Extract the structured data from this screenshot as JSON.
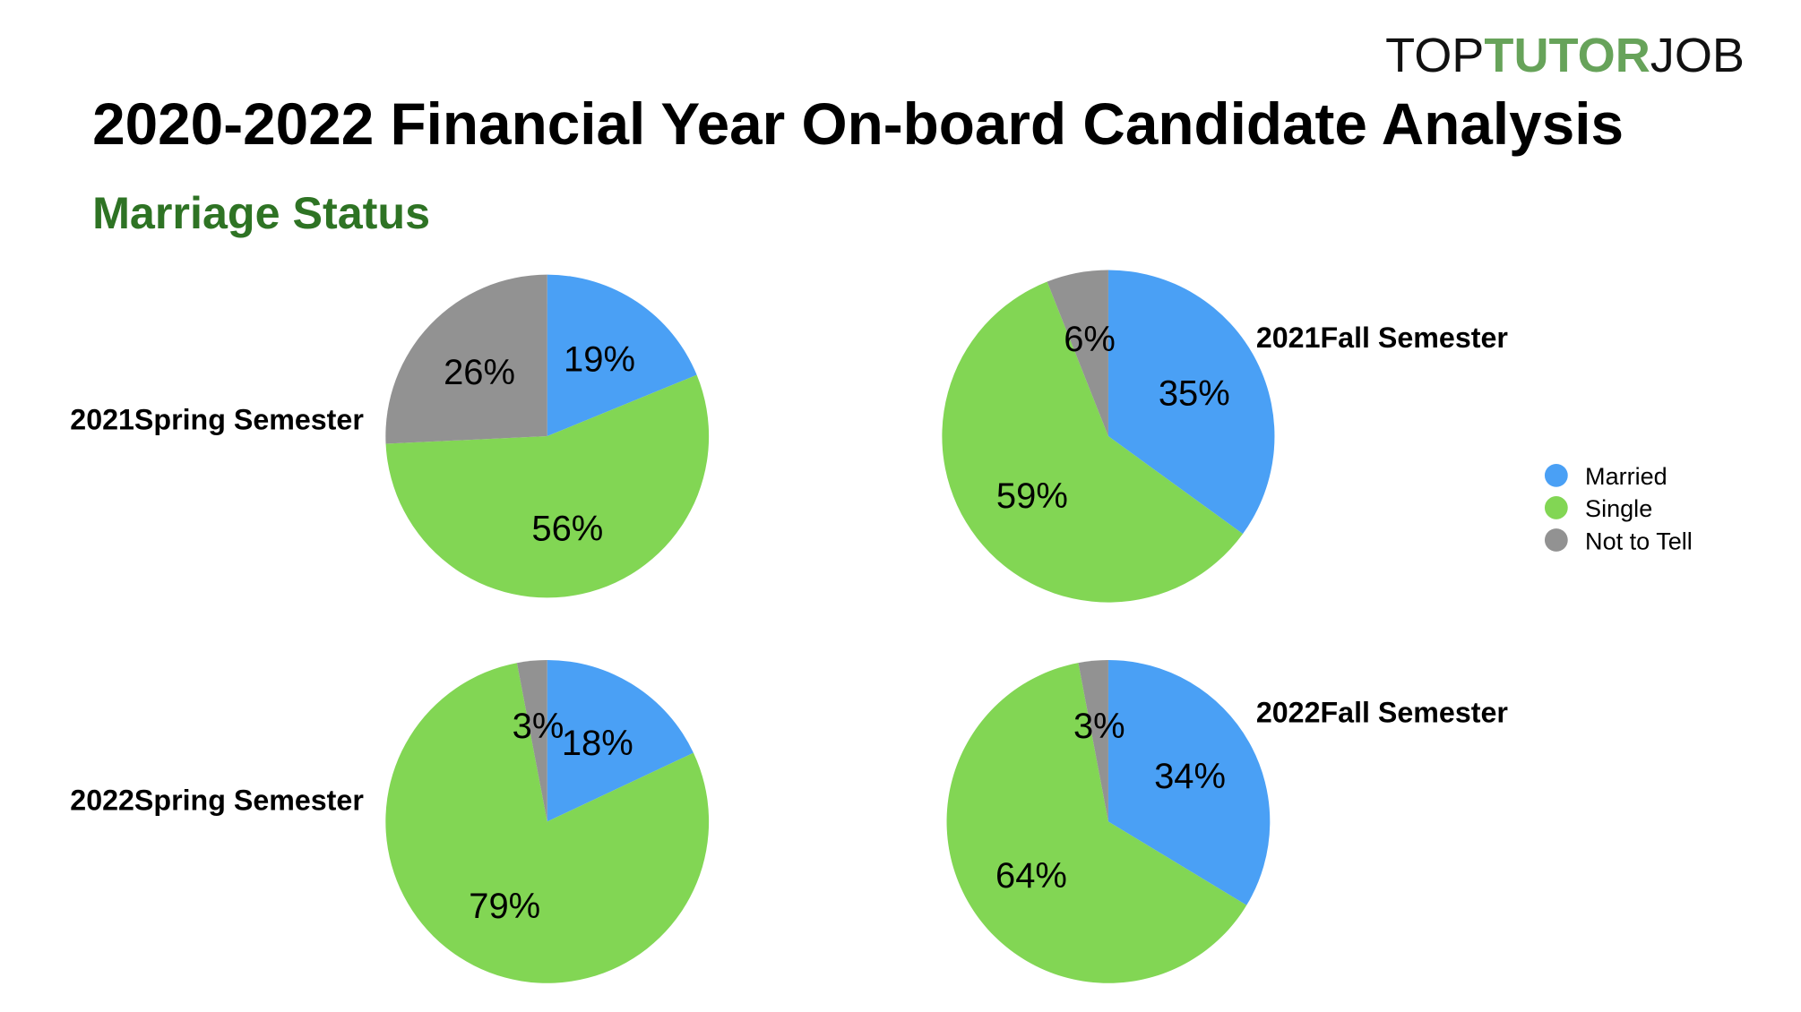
{
  "logo": {
    "part1": "TOP",
    "part2": "TUTOR",
    "part3": "JOB",
    "accent": "#67a35a"
  },
  "title": "2020-2022 Financial Year On-board Candidate Analysis",
  "subtitle": "Marriage Status",
  "subtitle_color": "#2e7324",
  "chart_data": {
    "type": "pie",
    "categories": [
      "Married",
      "Single",
      "Not to Tell"
    ],
    "colors": [
      "#4aa0f5",
      "#82d654",
      "#929292"
    ],
    "legend": {
      "position": "right",
      "entries": [
        "Married",
        "Single",
        "Not to Tell"
      ]
    },
    "charts": [
      {
        "title": "2021Spring Semester",
        "values": [
          19,
          56,
          26
        ],
        "labels": [
          "19%",
          "56%",
          "26%"
        ]
      },
      {
        "title": "2021Fall Semester",
        "values": [
          35,
          59,
          6
        ],
        "labels": [
          "35%",
          "59%",
          "6%"
        ]
      },
      {
        "title": "2022Spring Semester",
        "values": [
          18,
          79,
          3
        ],
        "labels": [
          "18%",
          "79%",
          "3%"
        ]
      },
      {
        "title": "2022Fall Semester",
        "values": [
          34,
          64,
          3
        ],
        "labels": [
          "34%",
          "64%",
          "3%"
        ]
      }
    ]
  }
}
